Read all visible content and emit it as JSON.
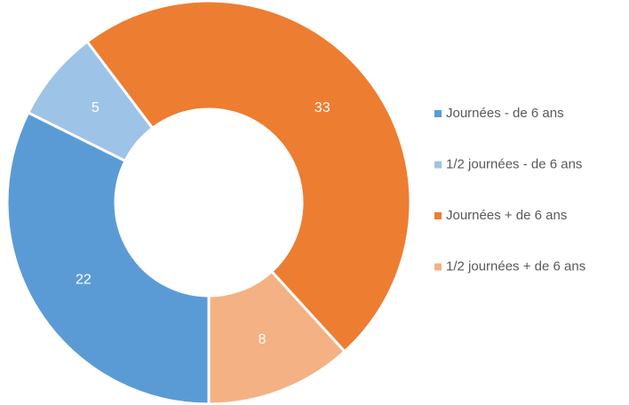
{
  "chart_data": {
    "type": "donut",
    "categories": [
      "Journées - de 6 ans",
      "1/2 journées - de 6 ans",
      "Journées + de 6 ans",
      "1/2 journées + de 6 ans"
    ],
    "values": [
      22,
      5,
      33,
      8
    ],
    "colors": [
      "#5b9bd5",
      "#9dc3e6",
      "#ed7d31",
      "#f4b183"
    ],
    "legend": "right"
  }
}
